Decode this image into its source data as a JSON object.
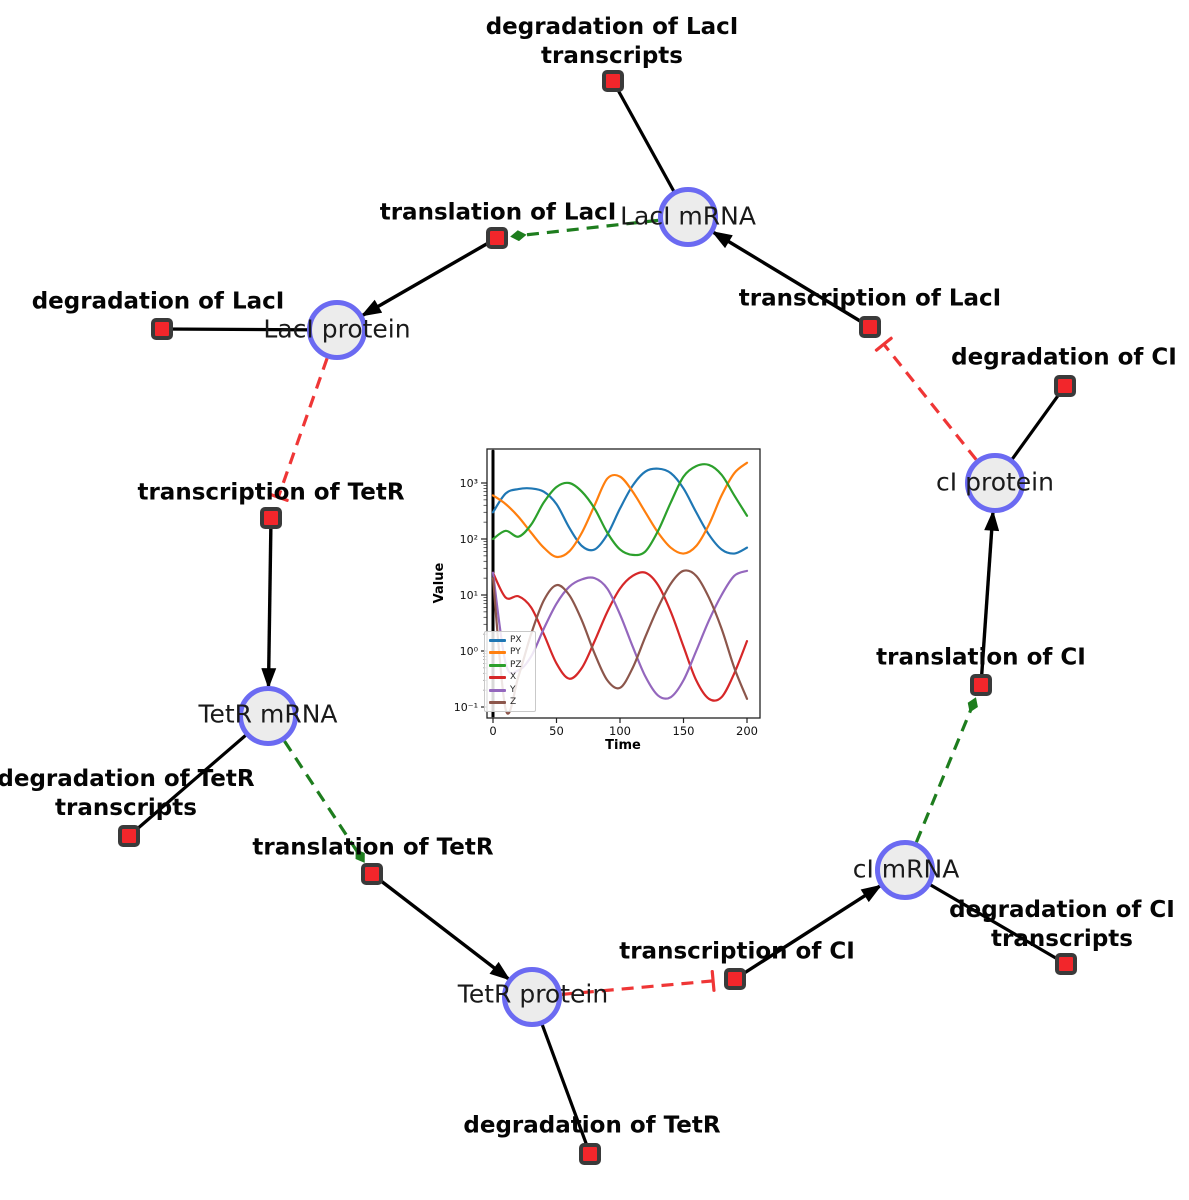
{
  "diagram": {
    "species": [
      {
        "id": "laci-mrna",
        "label": "LacI mRNA"
      },
      {
        "id": "laci-protein",
        "label": "LacI protein"
      },
      {
        "id": "tetr-mrna",
        "label": "TetR mRNA"
      },
      {
        "id": "tetr-protein",
        "label": "TetR protein"
      },
      {
        "id": "ci-mrna",
        "label": "cI mRNA"
      },
      {
        "id": "ci-protein",
        "label": "cI protein"
      }
    ],
    "reactions": [
      {
        "id": "degradation-laci-transcripts",
        "lines": [
          "degradation of LacI",
          "transcripts"
        ]
      },
      {
        "id": "translation-laci",
        "lines": [
          "translation of LacI"
        ]
      },
      {
        "id": "transcription-laci",
        "lines": [
          "transcription of LacI"
        ]
      },
      {
        "id": "degradation-laci",
        "lines": [
          "degradation of LacI"
        ]
      },
      {
        "id": "degradation-ci",
        "lines": [
          "degradation of CI"
        ]
      },
      {
        "id": "transcription-tetr",
        "lines": [
          "transcription of TetR"
        ]
      },
      {
        "id": "translation-ci",
        "lines": [
          "translation of CI"
        ]
      },
      {
        "id": "degradation-tetr-transcripts",
        "lines": [
          "degradation of TetR",
          "transcripts"
        ]
      },
      {
        "id": "translation-tetr",
        "lines": [
          "translation of TetR"
        ]
      },
      {
        "id": "transcription-ci",
        "lines": [
          "transcription of CI"
        ]
      },
      {
        "id": "degradation-ci-transcripts",
        "lines": [
          "degradation of CI",
          "transcripts"
        ]
      },
      {
        "id": "degradation-tetr",
        "lines": [
          "degradation of TetR"
        ]
      }
    ],
    "edges": [
      {
        "from": "LacI mRNA",
        "to": "degradation of LacI transcripts",
        "kind": "consumption-line"
      },
      {
        "from": "LacI mRNA",
        "to": "translation of LacI",
        "kind": "modifier-dashed-green"
      },
      {
        "from": "translation of LacI",
        "to": "LacI protein",
        "kind": "production-arrow"
      },
      {
        "from": "transcription of LacI",
        "to": "LacI mRNA",
        "kind": "production-arrow"
      },
      {
        "from": "LacI protein",
        "to": "degradation of LacI",
        "kind": "consumption-line"
      },
      {
        "from": "LacI protein",
        "to": "transcription of TetR",
        "kind": "inhibition-dashed-red"
      },
      {
        "from": "transcription of TetR",
        "to": "TetR mRNA",
        "kind": "production-arrow"
      },
      {
        "from": "TetR mRNA",
        "to": "degradation of TetR transcripts",
        "kind": "consumption-line"
      },
      {
        "from": "TetR mRNA",
        "to": "translation of TetR",
        "kind": "modifier-dashed-green"
      },
      {
        "from": "translation of TetR",
        "to": "TetR protein",
        "kind": "production-arrow"
      },
      {
        "from": "TetR protein",
        "to": "degradation of TetR",
        "kind": "consumption-line"
      },
      {
        "from": "TetR protein",
        "to": "transcription of CI",
        "kind": "inhibition-dashed-red"
      },
      {
        "from": "transcription of CI",
        "to": "cI mRNA",
        "kind": "production-arrow"
      },
      {
        "from": "cI mRNA",
        "to": "degradation of CI transcripts",
        "kind": "consumption-line"
      },
      {
        "from": "cI mRNA",
        "to": "translation of CI",
        "kind": "modifier-dashed-green"
      },
      {
        "from": "translation of CI",
        "to": "cI protein",
        "kind": "production-arrow"
      },
      {
        "from": "cI protein",
        "to": "degradation of CI",
        "kind": "consumption-line"
      },
      {
        "from": "cI protein",
        "to": "transcription of LacI",
        "kind": "inhibition-dashed-red"
      }
    ],
    "colors": {
      "production": "#000000",
      "modifier": "#1e7d1e",
      "inhibition": "#ef3636",
      "species_fill": "#ececec",
      "species_border": "#6b6af2",
      "reaction_fill": "#f2262b",
      "reaction_border": "#3a3a3a"
    }
  },
  "chart_data": {
    "type": "line",
    "title": "",
    "xlabel": "Time",
    "ylabel": "Value",
    "x_ticks": [
      0,
      50,
      100,
      150,
      200
    ],
    "xlim": [
      -5,
      210
    ],
    "y_scale": "log",
    "y_tick_exponents": [
      -1,
      0,
      1,
      2,
      3
    ],
    "y_tick_labels": [
      "10⁻¹",
      "10⁰",
      "10¹",
      "10²",
      "10³"
    ],
    "ylim": [
      0.085,
      3200
    ],
    "legend_position": "lower left",
    "event_line_x": 0,
    "grid": false,
    "x": [
      0,
      10,
      20,
      30,
      40,
      50,
      60,
      70,
      80,
      90,
      100,
      110,
      120,
      130,
      140,
      150,
      160,
      170,
      180,
      190,
      200
    ],
    "series": [
      {
        "name": "PX",
        "color": "#1f77b4",
        "values": [
          300,
          650,
          780,
          800,
          700,
          420,
          160,
          75,
          65,
          120,
          350,
          900,
          1600,
          1800,
          1500,
          800,
          300,
          120,
          65,
          55,
          70
        ]
      },
      {
        "name": "PY",
        "color": "#ff7f0e",
        "values": [
          600,
          420,
          250,
          130,
          70,
          48,
          60,
          130,
          400,
          1200,
          1300,
          700,
          300,
          130,
          70,
          55,
          75,
          180,
          600,
          1500,
          2300
        ]
      },
      {
        "name": "PZ",
        "color": "#2ca02c",
        "values": [
          100,
          140,
          110,
          180,
          450,
          850,
          1000,
          700,
          350,
          130,
          65,
          52,
          60,
          140,
          450,
          1300,
          2000,
          2100,
          1400,
          600,
          260
        ]
      },
      {
        "name": "X",
        "color": "#d62728",
        "values": [
          25,
          9,
          9.5,
          6,
          2,
          0.6,
          0.32,
          0.5,
          1.5,
          5,
          13,
          22,
          25,
          15,
          5,
          1.2,
          0.3,
          0.14,
          0.15,
          0.4,
          1.5
        ]
      },
      {
        "name": "Y",
        "color": "#9467bd",
        "values": [
          25,
          0.6,
          0.45,
          0.8,
          2.5,
          7,
          14,
          19,
          20,
          13,
          4.5,
          1.2,
          0.35,
          0.16,
          0.15,
          0.3,
          1,
          3.5,
          10,
          22,
          27
        ]
      },
      {
        "name": "Z",
        "color": "#8c564b",
        "values": [
          20,
          0.09,
          0.35,
          2,
          8,
          15,
          10,
          3.5,
          0.9,
          0.3,
          0.22,
          0.5,
          1.8,
          6,
          16,
          27,
          22,
          9,
          2.5,
          0.5,
          0.14
        ]
      }
    ]
  }
}
